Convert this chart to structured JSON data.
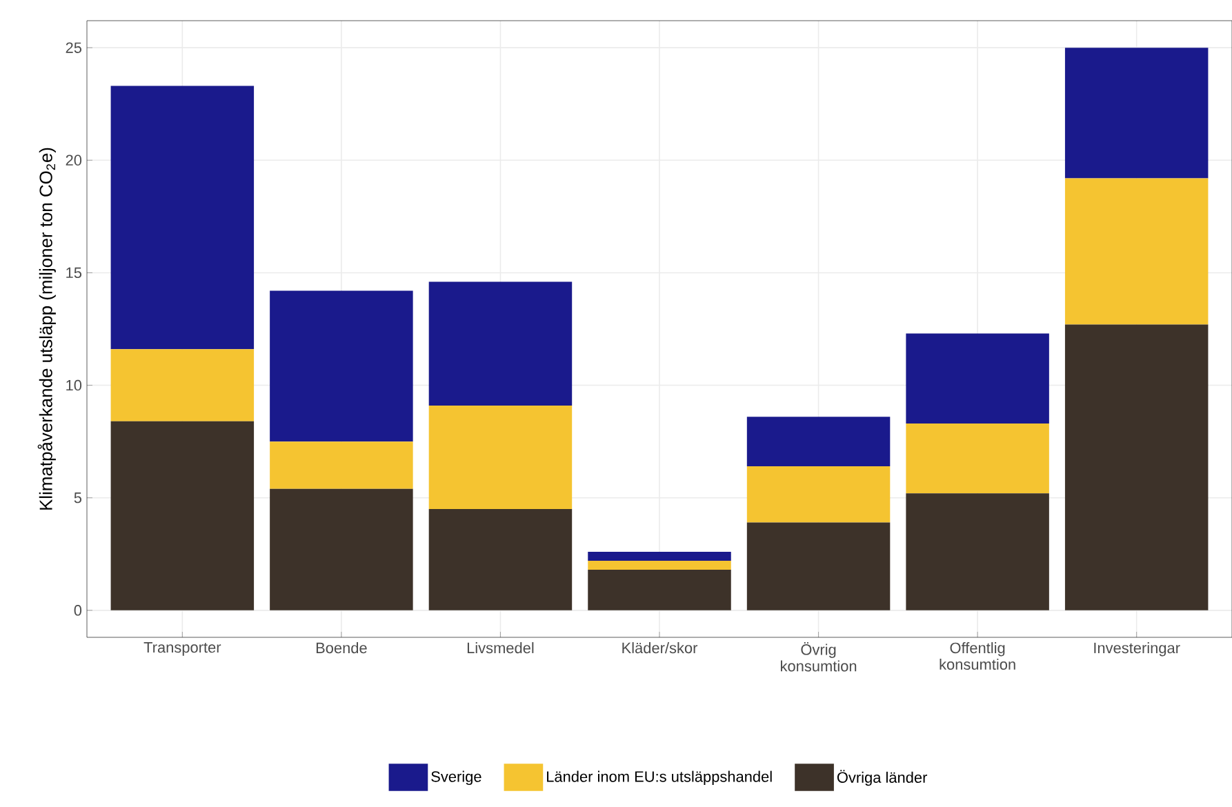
{
  "chart_data": {
    "type": "bar",
    "stacked": true,
    "ylabel": "Klimatpåverkande utsläpp (miljoner ton CO$_{2}$e)",
    "categories": [
      "Transporter",
      "Boende",
      "Livsmedel",
      "Kläder/skor",
      "Övrig konsumtion",
      "Offentlig konsumtion",
      "Investeringar"
    ],
    "series": [
      {
        "name": "Övriga länder",
        "color": "#3d3229",
        "values": [
          8.4,
          5.4,
          4.5,
          1.8,
          3.9,
          5.2,
          12.7
        ]
      },
      {
        "name": "Länder inom EU:s utsläppshandel",
        "color": "#f5c431",
        "values": [
          3.2,
          2.1,
          4.6,
          0.4,
          2.5,
          3.1,
          6.5
        ]
      },
      {
        "name": "Sverige",
        "color": "#1a1a8c",
        "values": [
          11.7,
          6.7,
          5.5,
          0.4,
          2.2,
          4.0,
          5.8
        ]
      }
    ],
    "ylim": [
      -1.2,
      26.2
    ],
    "yticks": [
      0,
      5,
      10,
      15,
      20,
      25
    ],
    "grid": true,
    "legend": "bottom"
  }
}
